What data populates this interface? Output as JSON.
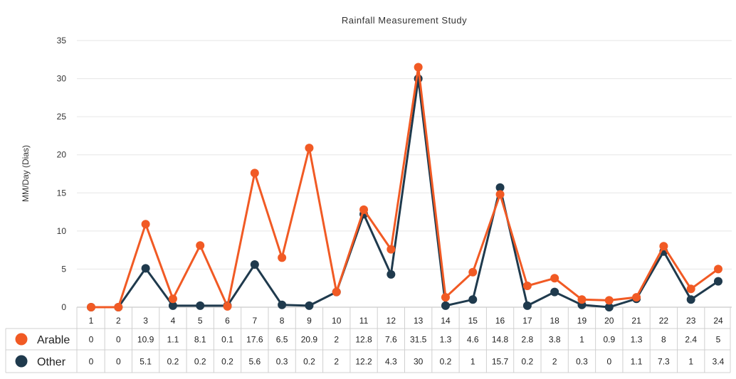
{
  "chart_data": {
    "type": "line",
    "title": "Rainfall Measurement Study",
    "ylabel": "MM/Day (Dias)",
    "xlabel": "",
    "ylim": [
      0,
      35
    ],
    "yticks": [
      0,
      5,
      10,
      15,
      20,
      25,
      30,
      35
    ],
    "grid": true,
    "legend": "data-table-left",
    "categories": [
      "1",
      "2",
      "3",
      "4",
      "5",
      "6",
      "7",
      "8",
      "9",
      "10",
      "11",
      "12",
      "13",
      "14",
      "15",
      "16",
      "17",
      "18",
      "19",
      "20",
      "21",
      "22",
      "23",
      "24"
    ],
    "series": [
      {
        "name": "Arable",
        "color": "#f15a24",
        "values": [
          0,
          0,
          10.9,
          1.1,
          8.1,
          0.1,
          17.6,
          6.5,
          20.9,
          2,
          12.8,
          7.6,
          31.5,
          1.3,
          4.6,
          14.8,
          2.8,
          3.8,
          1,
          0.9,
          1.3,
          8,
          2.4,
          5
        ],
        "labels": [
          "0",
          "0",
          "10.9",
          "1.1",
          "8.1",
          "0.1",
          "17.6",
          "6.5",
          "20.9",
          "2",
          "12.8",
          "7.6",
          "31.5",
          "1.3",
          "4.6",
          "14.8",
          "2.8",
          "3.8",
          "1",
          "0.9",
          "1.3",
          "8",
          "2.4",
          "5"
        ]
      },
      {
        "name": "Other",
        "color": "#1f3a4d",
        "values": [
          0,
          0,
          5.1,
          0.2,
          0.2,
          0.2,
          5.6,
          0.3,
          0.2,
          2,
          12.2,
          4.3,
          30,
          0.2,
          1,
          15.7,
          0.2,
          2,
          0.3,
          0,
          1.1,
          7.3,
          1,
          3.4
        ],
        "labels": [
          "0",
          "0",
          "5.1",
          "0.2",
          "0.2",
          "0.2",
          "5.6",
          "0.3",
          "0.2",
          "2",
          "12.2",
          "4.3",
          "30",
          "0.2",
          "1",
          "15.7",
          "0.2",
          "2",
          "0.3",
          "0",
          "1.1",
          "7.3",
          "1",
          "3.4"
        ]
      }
    ]
  }
}
